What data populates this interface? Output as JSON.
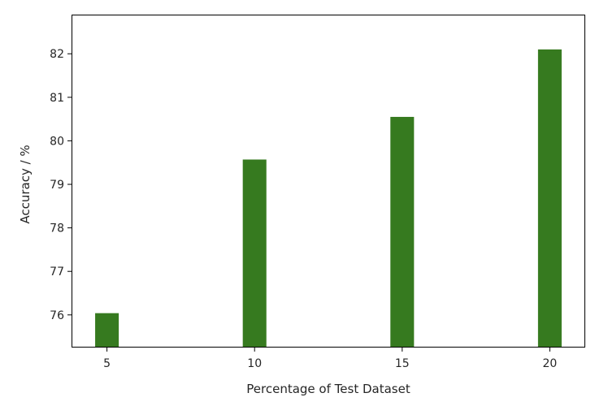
{
  "chart_data": {
    "type": "bar",
    "categories": [
      "5",
      "10",
      "15",
      "20"
    ],
    "x": [
      5,
      10,
      15,
      20
    ],
    "values": [
      76.04,
      79.57,
      80.55,
      82.1
    ],
    "title": "",
    "xlabel": "Percentage of Test Dataset",
    "ylabel": "Accuracy / %",
    "xlim": [
      3.8,
      21.2
    ],
    "ylim": [
      75.25,
      82.9
    ],
    "bar_width": 0.8,
    "x_ticks": [
      5,
      10,
      15,
      20
    ],
    "y_ticks": [
      76,
      77,
      78,
      79,
      80,
      81,
      82
    ],
    "grid": false,
    "legend": "none",
    "bar_color": "#367a1f",
    "axis_color": "#000000",
    "text_color": "#262626"
  }
}
